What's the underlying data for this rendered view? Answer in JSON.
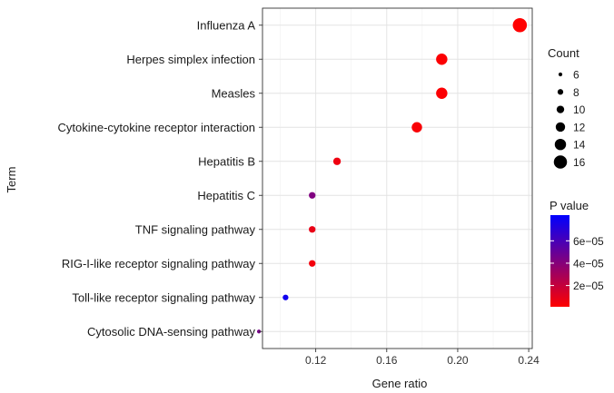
{
  "chart_data": {
    "type": "scatter",
    "title": "",
    "xlabel": "Gene ratio",
    "ylabel": "Term",
    "xlim": [
      0.09,
      0.242
    ],
    "xticks": [
      0.12,
      0.16,
      0.2,
      0.24
    ],
    "xtick_labels": [
      "0.12",
      "0.16",
      "0.20",
      "0.24"
    ],
    "grid": true,
    "legend_position": "right",
    "points": [
      {
        "term": "Influenza A",
        "gene_ratio": 0.235,
        "count": 17,
        "p_value": 1e-06
      },
      {
        "term": "Herpes simplex infection",
        "gene_ratio": 0.191,
        "count": 14,
        "p_value": 2e-06
      },
      {
        "term": "Measles",
        "gene_ratio": 0.191,
        "count": 14,
        "p_value": 2e-06
      },
      {
        "term": "Cytokine-cytokine receptor interaction",
        "gene_ratio": 0.177,
        "count": 13,
        "p_value": 3e-06
      },
      {
        "term": "Hepatitis B",
        "gene_ratio": 0.132,
        "count": 10,
        "p_value": 6e-06
      },
      {
        "term": "Hepatitis C",
        "gene_ratio": 0.118,
        "count": 9,
        "p_value": 4.2e-05
      },
      {
        "term": "TNF signaling pathway",
        "gene_ratio": 0.118,
        "count": 9,
        "p_value": 8e-06
      },
      {
        "term": "RIG-I-like receptor signaling pathway",
        "gene_ratio": 0.118,
        "count": 9,
        "p_value": 5e-06
      },
      {
        "term": "Toll-like receptor signaling pathway",
        "gene_ratio": 0.103,
        "count": 8,
        "p_value": 7.8e-05
      },
      {
        "term": "Cytosolic DNA-sensing pathway",
        "gene_ratio": 0.088,
        "count": 6,
        "p_value": 4.5e-05
      }
    ],
    "size_legend": {
      "title": "Count",
      "values": [
        6,
        8,
        10,
        12,
        14,
        16
      ],
      "labels": [
        "6",
        "8",
        "10",
        "12",
        "14",
        "16"
      ]
    },
    "color_legend": {
      "title": "P value",
      "min": 1e-06,
      "max": 8.3e-05,
      "ticks": [
        2e-05,
        4e-05,
        6e-05
      ],
      "labels": [
        "2e−05",
        "4e−05",
        "6e−05"
      ],
      "color_low": "#ff0000",
      "color_high": "#0000ff"
    }
  }
}
